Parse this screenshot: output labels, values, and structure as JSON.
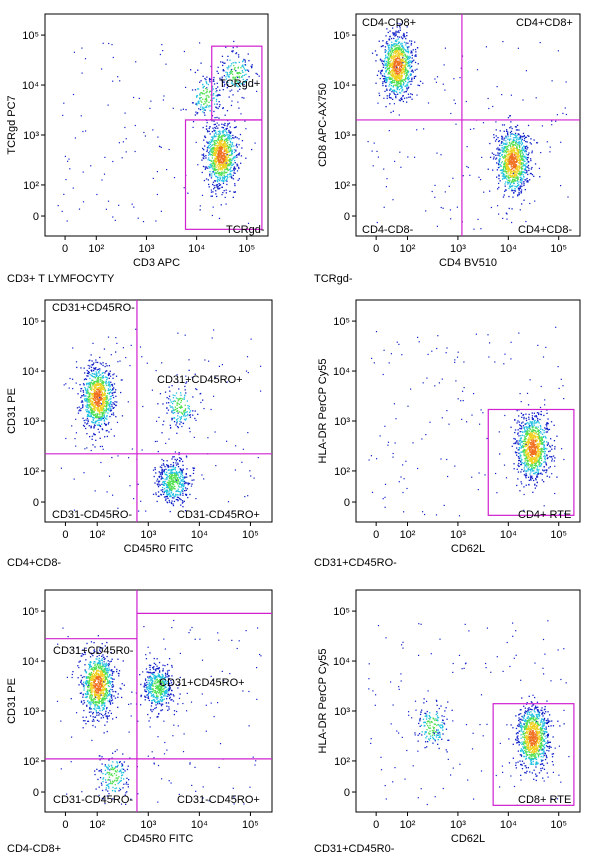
{
  "figure": {
    "colors": {
      "gate": "#d020d0",
      "density_low": "#1020c8",
      "density_mid": "#20c0e0",
      "density_high": "#f07020"
    }
  },
  "chart_data": [
    {
      "type": "scatter",
      "parent_population": "CD3+ T LYMFOCYTY",
      "xlabel": "CD3 APC",
      "ylabel": "TCRgd PC7",
      "x_scale": "biexponential",
      "y_scale": "biexponential",
      "x_ticks": [
        "0",
        "10²",
        "10³",
        "10⁴",
        "10⁵"
      ],
      "y_ticks": [
        "0",
        "10²",
        "10³",
        "10⁴",
        "10⁵"
      ],
      "gates": [
        {
          "label": "TCRgd+",
          "type": "rectangle",
          "x_range": [
            20000,
            200000
          ],
          "y_range": [
            2000,
            60000
          ]
        },
        {
          "label": "TCRgd-",
          "type": "rectangle",
          "x_range": [
            6000,
            200000
          ],
          "y_range": [
            -100,
            2000
          ]
        }
      ],
      "populations": [
        {
          "x_center": 30000,
          "y_center": 400,
          "weight": "high"
        },
        {
          "x_center": 15000,
          "y_center": 6000,
          "weight": "low"
        },
        {
          "x_center": 60000,
          "y_center": 18000,
          "weight": "low"
        }
      ]
    },
    {
      "type": "scatter",
      "parent_population": "TCRgd-",
      "xlabel": "CD4 BV510",
      "ylabel": "CD8 APC-AX750",
      "x_scale": "biexponential",
      "y_scale": "biexponential",
      "x_ticks": [
        "0",
        "10²",
        "10³",
        "10⁴",
        "10⁵"
      ],
      "y_ticks": [
        "0",
        "10²",
        "10³",
        "10⁴",
        "10⁵"
      ],
      "gates": [
        {
          "label": "CD4-CD8+",
          "type": "quadrant"
        },
        {
          "label": "CD4+CD8+",
          "type": "quadrant"
        },
        {
          "label": "CD4-CD8-",
          "type": "quadrant"
        },
        {
          "label": "CD4+CD8-",
          "type": "quadrant"
        }
      ],
      "quadrant_split": {
        "x": 1200,
        "y": 2000
      },
      "populations": [
        {
          "x_center": 20,
          "y_center": 25000,
          "weight": "high"
        },
        {
          "x_center": 12000,
          "y_center": 300,
          "weight": "high"
        }
      ]
    },
    {
      "type": "scatter",
      "parent_population": "CD4+CD8-",
      "xlabel": "CD45R0 FITC",
      "ylabel": "CD31 PE",
      "x_scale": "biexponential",
      "y_scale": "biexponential",
      "x_ticks": [
        "0",
        "10²",
        "10³",
        "10⁴",
        "10⁵"
      ],
      "y_ticks": [
        "0",
        "10²",
        "10³",
        "10⁴",
        "10⁵"
      ],
      "gates": [
        {
          "label": "CD31+CD45RO-",
          "type": "quadrant"
        },
        {
          "label": "CD31+CD45RO+",
          "type": "quadrant"
        },
        {
          "label": "CD31-CD45RO-",
          "type": "quadrant"
        },
        {
          "label": "CD31-CD45RO+",
          "type": "quadrant"
        }
      ],
      "quadrant_split": {
        "x": 600,
        "y": 220
      },
      "populations": [
        {
          "x_center": 100,
          "y_center": 3000,
          "weight": "high"
        },
        {
          "x_center": 3000,
          "y_center": 20,
          "weight": "medium"
        },
        {
          "x_center": 4000,
          "y_center": 2000,
          "weight": "low"
        }
      ]
    },
    {
      "type": "scatter",
      "parent_population": "CD31+CD45RO-",
      "xlabel": "CD62L",
      "ylabel": "HLA-DR PerCP Cy55",
      "x_scale": "biexponential",
      "y_scale": "biexponential",
      "x_ticks": [
        "0",
        "10²",
        "10³",
        "10⁴",
        "10⁵"
      ],
      "y_ticks": [
        "0",
        "10²",
        "10³",
        "10⁴",
        "10⁵"
      ],
      "gates": [
        {
          "label": "CD4+ RTE",
          "type": "rectangle",
          "x_range": [
            4000,
            200000
          ],
          "y_range": [
            -100,
            1700
          ]
        }
      ],
      "populations": [
        {
          "x_center": 30000,
          "y_center": 300,
          "weight": "high"
        }
      ]
    },
    {
      "type": "scatter",
      "parent_population": "CD4-CD8+",
      "xlabel": "CD45R0 FITC",
      "ylabel": "CD31 PE",
      "x_scale": "biexponential",
      "y_scale": "biexponential",
      "x_ticks": [
        "0",
        "10²",
        "10³",
        "10⁴",
        "10⁵"
      ],
      "y_ticks": [
        "0",
        "10²",
        "10³",
        "10⁴",
        "10⁵"
      ],
      "gates": [
        {
          "label": "CD31+CD45R0-",
          "type": "quadrant"
        },
        {
          "label": "CD31+CD45RO+",
          "type": "quadrant"
        },
        {
          "label": "CD31-CD45RO-",
          "type": "quadrant"
        },
        {
          "label": "CD31-CD45RO+",
          "type": "quadrant"
        }
      ],
      "quadrant_split": {
        "x": 600,
        "y": 110
      },
      "upper_gate_y": 28000,
      "populations": [
        {
          "x_center": 100,
          "y_center": 3500,
          "weight": "high"
        },
        {
          "x_center": 1500,
          "y_center": 3000,
          "weight": "medium"
        },
        {
          "x_center": 200,
          "y_center": 10,
          "weight": "low"
        }
      ]
    },
    {
      "type": "scatter",
      "parent_population": "CD31+CD45R0-",
      "xlabel": "CD62L",
      "ylabel": "HLA-DR PerCP Cy55",
      "x_scale": "biexponential",
      "y_scale": "biexponential",
      "x_ticks": [
        "0",
        "10²",
        "10³",
        "10⁴",
        "10⁵"
      ],
      "y_ticks": [
        "0",
        "10²",
        "10³",
        "10⁴",
        "10⁵"
      ],
      "gates": [
        {
          "label": "CD8+ RTE",
          "type": "rectangle",
          "x_range": [
            5000,
            200000
          ],
          "y_range": [
            -100,
            1400
          ]
        }
      ],
      "populations": [
        {
          "x_center": 30000,
          "y_center": 300,
          "weight": "high"
        },
        {
          "x_center": 300,
          "y_center": 500,
          "weight": "low"
        }
      ]
    }
  ]
}
